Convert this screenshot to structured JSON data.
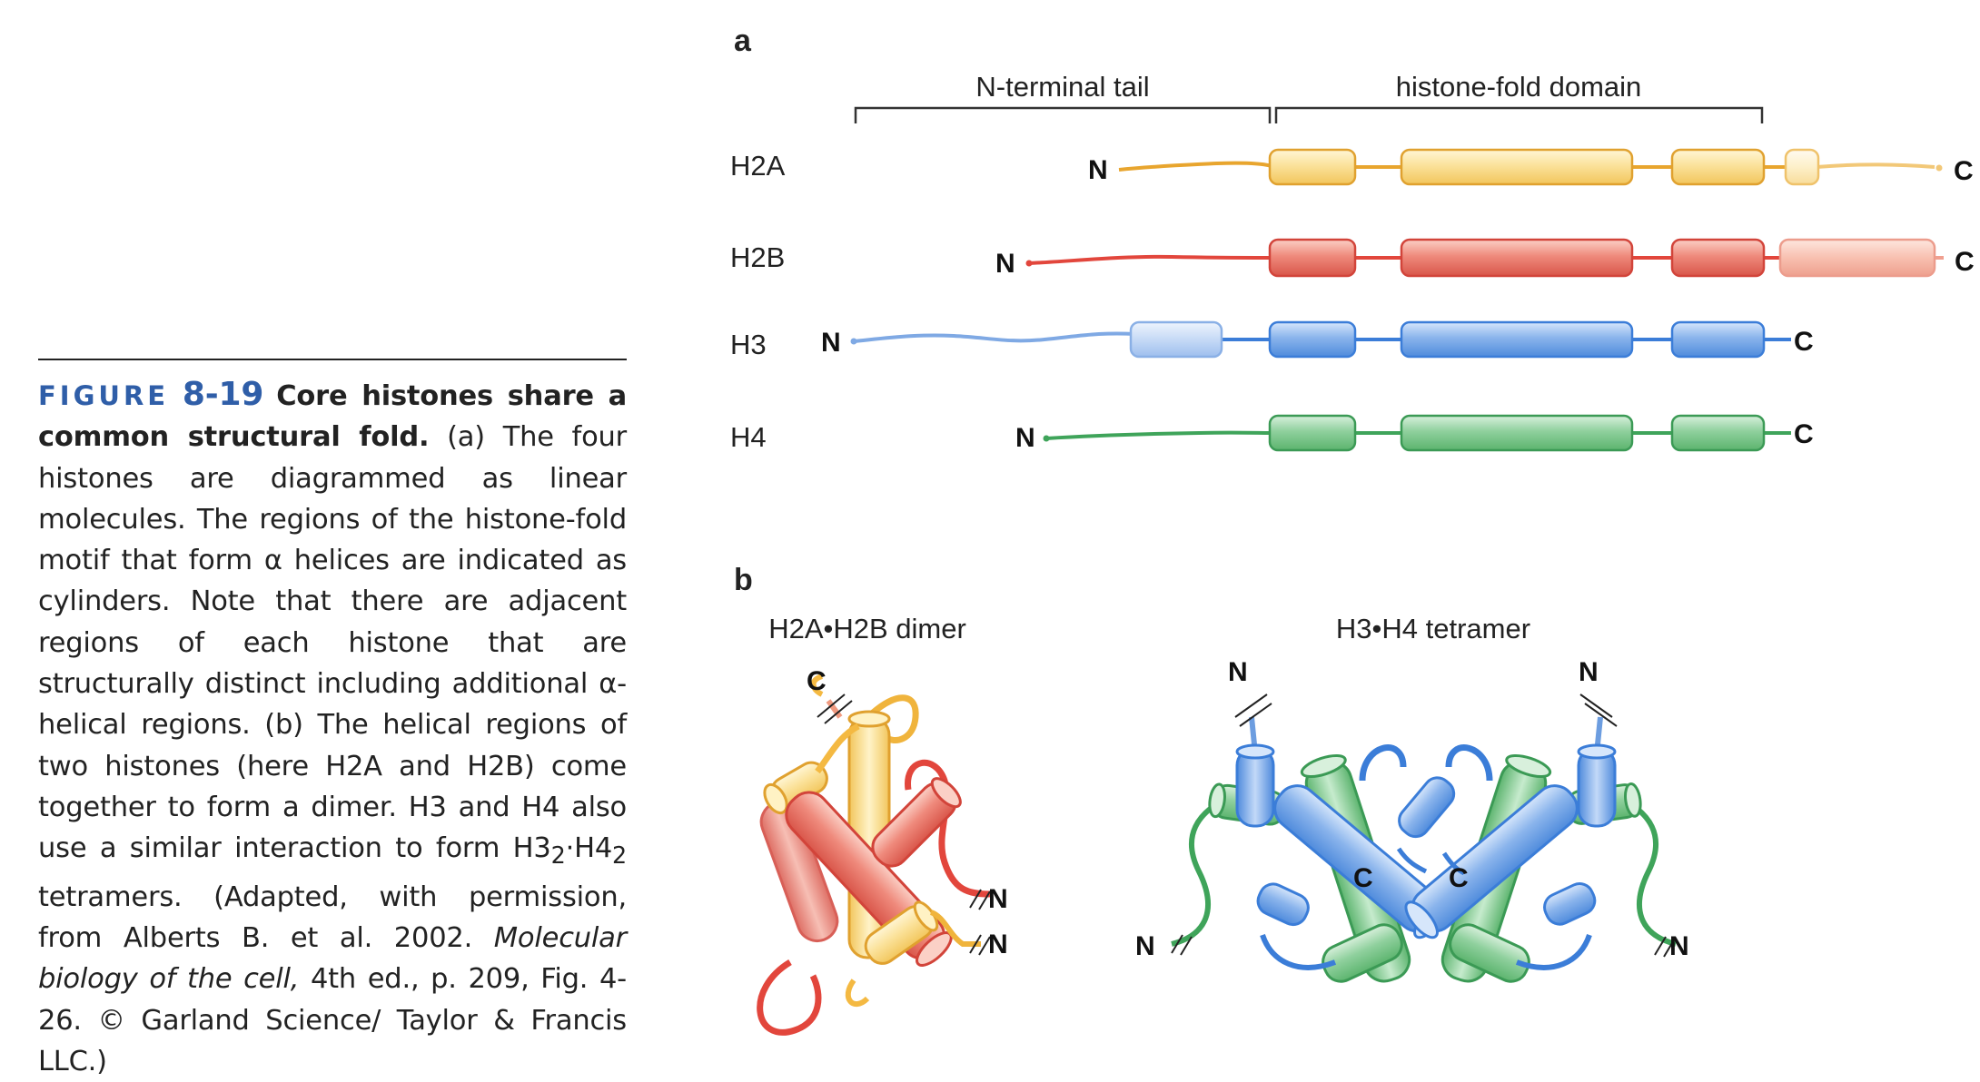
{
  "panel_a": {
    "letter": "a",
    "region_tail": "N-terminal tail",
    "region_fold": "histone-fold domain",
    "rows": [
      {
        "label": "H2A",
        "n": "N",
        "c": "C"
      },
      {
        "label": "H2B",
        "n": "N",
        "c": "C"
      },
      {
        "label": "H3",
        "n": "N",
        "c": "C"
      },
      {
        "label": "H4",
        "n": "N",
        "c": "C"
      }
    ]
  },
  "panel_b": {
    "letter": "b",
    "dimer_title": "H2A•H2B dimer",
    "tetramer_title": "H3•H4 tetramer",
    "dimer_c": "C",
    "dimer_n1": "N",
    "dimer_n2": "N",
    "tet_n_left_top": "N",
    "tet_n_right_top": "N",
    "tet_c_left": "C",
    "tet_c_right": "C",
    "tet_n_left_bottom": "N",
    "tet_n_right_bottom": "N"
  },
  "colors": {
    "h2a": "#f4b942",
    "h2a_fill": "#fbe29b",
    "h2b": "#e2463c",
    "h2b_fill": "#ef8a7c",
    "h3": "#3b7dd8",
    "h3_fill": "#8ab4ec",
    "h4": "#3fa45a",
    "h4_fill": "#8fd09d",
    "accent": "#2f5ea8"
  },
  "caption": {
    "label": "FIGURE",
    "number": "8-19",
    "title": "Core histones share a common structural fold.",
    "body": " (a) The four histones are diagrammed as linear molecules. The regions of the histone-fold motif that form α helices are indicated as cylinders. Note that there are adjacent regions of each histone that are structurally distinct including additional α-helical regions. (b) The helical regions of two histones (here H2A and H2B) come together to form a dimer. H3 and H4 also use a similar interaction to form H3",
    "sub1": "2",
    "mid": "·H4",
    "sub2": "2",
    "after": " tetramers. (Adapted, with permission, from Alberts B. et al. 2002. ",
    "italic": "Molecular biology of the cell,",
    "tail": " 4th ed., p. 209, Fig. 4-26. © Garland Science/ Taylor & Francis LLC.)"
  }
}
